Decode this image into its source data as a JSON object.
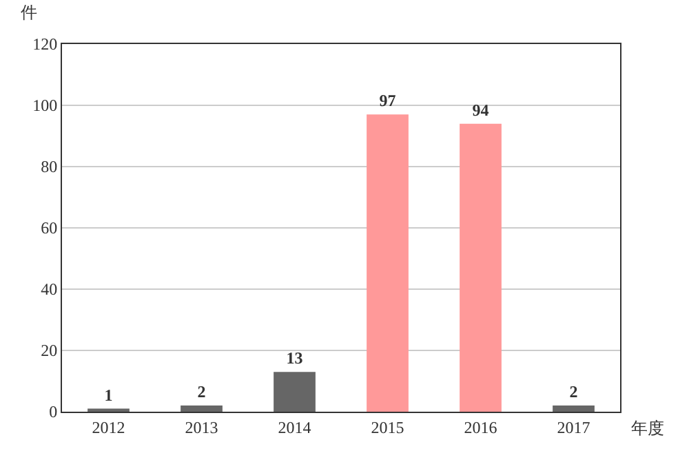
{
  "chart_data": {
    "type": "bar",
    "ylabel": "件",
    "xlabel": "年度",
    "categories": [
      "2012",
      "2013",
      "2014",
      "2015",
      "2016",
      "2017"
    ],
    "values": [
      1,
      2,
      13,
      97,
      94,
      2
    ],
    "colors": [
      "#666666",
      "#666666",
      "#666666",
      "#ff9999",
      "#ff9999",
      "#666666"
    ],
    "ylim": [
      0,
      120
    ],
    "yticks": [
      0,
      20,
      40,
      60,
      80,
      100,
      120
    ],
    "grid": "y",
    "data_labels": true
  }
}
